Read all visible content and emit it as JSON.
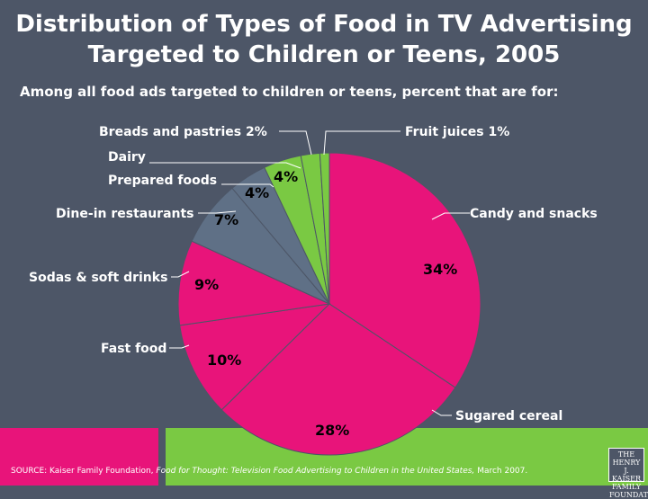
{
  "chart_data": {
    "type": "pie",
    "title": [
      "Distribution of Types of Food in TV Advertising",
      "Targeted to Children or Teens, 2005"
    ],
    "subtitle": "Among all food ads targeted to children or teens, percent that are for:",
    "slices": [
      {
        "category": "Candy and snacks",
        "value": 34,
        "label": "34%",
        "color": "#e8147a"
      },
      {
        "category": "Sugared cereal",
        "value": 28,
        "label": "28%",
        "color": "#e8147a"
      },
      {
        "category": "Fast food",
        "value": 10,
        "label": "10%",
        "color": "#e8147a"
      },
      {
        "category": "Sodas & soft drinks",
        "value": 9,
        "label": "9%",
        "color": "#e8147a"
      },
      {
        "category": "Dine-in restaurants",
        "value": 7,
        "label": "7%",
        "color": "#5f7086"
      },
      {
        "category": "Prepared foods",
        "value": 4,
        "label": "4%",
        "color": "#5f7086"
      },
      {
        "category": "Dairy",
        "value": 4,
        "label": "4%",
        "color": "#7ac943"
      },
      {
        "category": "Breads and pastries",
        "value": 2,
        "label": "2%",
        "color": "#7ac943"
      },
      {
        "category": "Fruit juices",
        "value": 1,
        "label": "1%",
        "color": "#7ac943"
      }
    ],
    "outside_labels": {
      "breads": "Breads and pastries  2%",
      "fruit": "Fruit juices  1%",
      "dairy": "Dairy",
      "prepared": "Prepared foods",
      "dine": "Dine-in restaurants",
      "sodas": "Sodas & soft drinks",
      "fast": "Fast food",
      "candy": "Candy and snacks",
      "cereal": "Sugared cereal"
    }
  },
  "footer": {
    "source_prefix": "SOURCE: Kaiser Family Foundation,",
    "source_title": "Food for Thought: Television Food Advertising to Children in the United States,",
    "source_suffix": "March 2007."
  },
  "logo": {
    "line1": "THE HENRY J.",
    "line2": "KAISER",
    "line3": "FAMILY",
    "line4": "FOUNDATION"
  },
  "colors": {
    "background": "#4d5667",
    "pink": "#e8147a",
    "green": "#7ac943",
    "slate": "#5f7086"
  }
}
